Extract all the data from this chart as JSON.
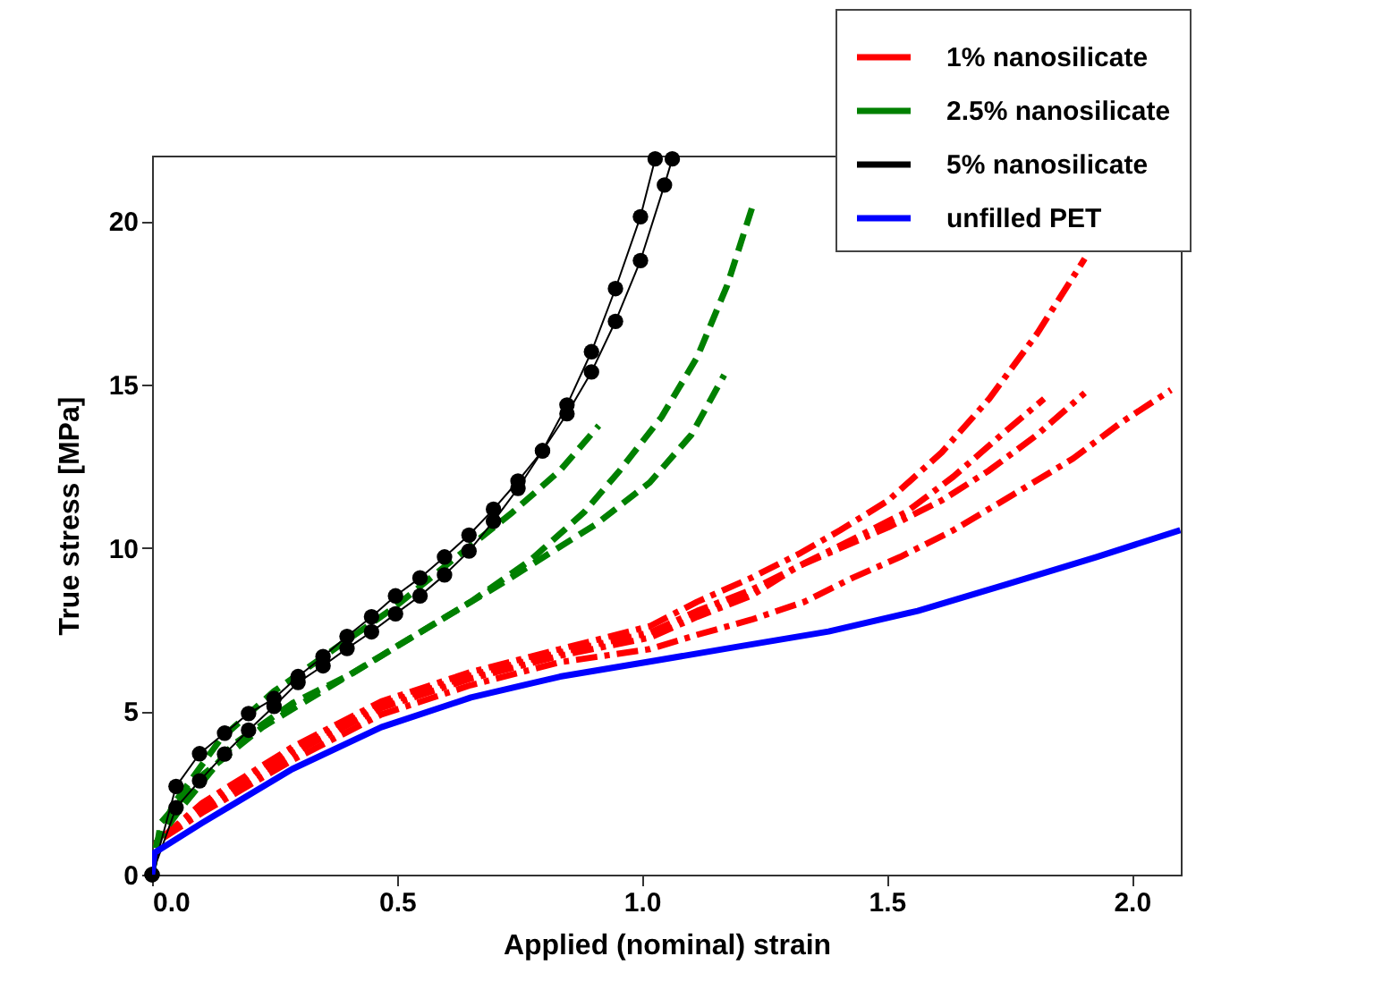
{
  "chart_data": {
    "type": "line",
    "xlabel": "Applied (nominal) strain",
    "ylabel": "True stress [MPa]",
    "xlim": [
      0,
      2.1
    ],
    "ylim": [
      0,
      22
    ],
    "xticks": [
      {
        "value": 0,
        "label": "0.0"
      },
      {
        "value": 0.5,
        "label": "0.5"
      },
      {
        "value": 1,
        "label": "1.0"
      },
      {
        "value": 1.5,
        "label": "1.5"
      },
      {
        "value": 2,
        "label": "2.0"
      }
    ],
    "yticks": [
      0,
      5,
      10,
      15,
      20
    ],
    "grid": false,
    "legend": "top right",
    "series": [
      {
        "name": "1% nanosilicate",
        "color": "#ff0000",
        "line_style": "dashdot",
        "x": [
          0,
          0.01,
          0.103,
          0.286,
          0.468,
          0.651,
          0.833,
          1.016,
          1.113,
          1.223,
          1.32,
          1.405,
          1.503,
          1.612,
          1.709,
          1.807,
          1.904
        ],
        "values": [
          0,
          1.0,
          2.2,
          3.9,
          5.3,
          6.2,
          6.9,
          7.6,
          8.35,
          9.08,
          9.81,
          10.54,
          11.45,
          12.92,
          14.56,
          16.56,
          18.85
        ]
      },
      {
        "color": "#ff0000",
        "line_style": "dashdot",
        "x": [
          0,
          0.01,
          0.103,
          0.286,
          0.468,
          0.651,
          0.833,
          1.016,
          1.113,
          1.223,
          1.332,
          1.43,
          1.539,
          1.636,
          1.734,
          1.821
        ],
        "values": [
          0,
          1.0,
          2.1,
          3.8,
          5.2,
          6.1,
          6.8,
          7.4,
          8.07,
          8.71,
          9.53,
          10.26,
          11.09,
          12.18,
          13.46,
          14.56
        ]
      },
      {
        "color": "#ff0000",
        "line_style": "dashdot",
        "x": [
          0,
          0.01,
          0.103,
          0.286,
          0.468,
          0.651,
          0.833,
          1.016,
          1.113,
          1.223,
          1.32,
          1.405,
          1.503,
          1.612,
          1.709,
          1.807,
          1.904
        ],
        "values": [
          0,
          1.0,
          2.0,
          3.7,
          5.1,
          6.0,
          6.7,
          7.25,
          7.89,
          8.53,
          9.44,
          9.99,
          10.63,
          11.45,
          12.37,
          13.46,
          14.74
        ]
      },
      {
        "color": "#ff0000",
        "line_style": "dashdot",
        "x": [
          0,
          0.01,
          0.103,
          0.286,
          0.468,
          0.651,
          0.833,
          1.016,
          1.113,
          1.223,
          1.332,
          1.43,
          1.527,
          1.636,
          1.758,
          1.88,
          1.977,
          2.08
        ],
        "values": [
          0,
          1.0,
          1.9,
          3.5,
          4.9,
          5.8,
          6.5,
          6.9,
          7.34,
          7.8,
          8.35,
          9.08,
          9.72,
          10.54,
          11.63,
          12.73,
          13.82,
          14.83
        ]
      },
      {
        "name": "2.5% nanosilicate",
        "color": "#008000",
        "line_style": "dashed",
        "x": [
          0,
          0.01,
          0.055,
          0.164,
          0.286,
          0.408,
          0.529,
          0.651,
          0.773,
          0.882,
          0.955,
          1.04,
          1.113,
          1.174,
          1.229
        ],
        "values": [
          0,
          1.0,
          1.96,
          3.96,
          5.24,
          6.15,
          7.25,
          8.35,
          9.63,
          11.09,
          12.37,
          14.0,
          15.84,
          18.03,
          20.6
        ]
      },
      {
        "color": "#008000",
        "line_style": "dashed",
        "x": [
          0,
          0.01,
          0.043,
          0.14,
          0.249,
          0.371,
          0.493,
          0.614,
          0.736,
          0.833,
          0.912
        ],
        "values": [
          0,
          1.0,
          2.14,
          4.15,
          5.61,
          6.89,
          8.16,
          9.63,
          11.09,
          12.37,
          13.74
        ]
      },
      {
        "color": "#008000",
        "line_style": "dashed",
        "x": [
          0,
          0.018,
          0.103,
          0.225,
          0.347,
          0.468,
          0.59,
          0.712,
          0.809,
          0.906,
          1.016,
          1.101,
          1.168
        ],
        "values": [
          0,
          1.59,
          3.05,
          4.51,
          5.61,
          6.7,
          7.8,
          8.89,
          9.81,
          10.72,
          12.0,
          13.46,
          15.29
        ]
      },
      {
        "name": "5% nanosilicate",
        "color": "#000000",
        "line_style": "solid",
        "marker": "circle",
        "x": [
          0,
          0.049,
          0.097,
          0.148,
          0.197,
          0.249,
          0.298,
          0.349,
          0.398,
          0.448,
          0.497,
          0.547,
          0.597,
          0.647,
          0.697,
          0.747,
          0.797,
          0.847,
          0.897,
          0.946,
          0.997,
          1.027
        ],
        "values": [
          0,
          2.7,
          3.7,
          4.33,
          4.93,
          5.39,
          6.06,
          6.67,
          7.29,
          7.89,
          8.53,
          9.08,
          9.72,
          10.39,
          11.18,
          12.04,
          12.97,
          14.37,
          16.0,
          17.93,
          20.13,
          21.9
        ]
      },
      {
        "color": "#000000",
        "line_style": "solid",
        "marker": "circle",
        "x": [
          0,
          0.049,
          0.097,
          0.148,
          0.197,
          0.249,
          0.298,
          0.349,
          0.398,
          0.448,
          0.497,
          0.547,
          0.597,
          0.647,
          0.697,
          0.747,
          0.797,
          0.847,
          0.897,
          0.946,
          0.997,
          1.046,
          1.062
        ],
        "values": [
          0,
          2.05,
          2.87,
          3.69,
          4.42,
          5.15,
          5.88,
          6.39,
          6.92,
          7.43,
          7.98,
          8.53,
          9.17,
          9.9,
          10.81,
          11.82,
          12.97,
          14.1,
          15.38,
          16.93,
          18.79,
          21.1,
          21.9
        ]
      },
      {
        "name": "unfilled PET",
        "color": "#0000ff",
        "line_style": "solid",
        "x": [
          0,
          0.005,
          0.103,
          0.286,
          0.468,
          0.651,
          0.833,
          1.016,
          1.198,
          1.381,
          1.563,
          1.746,
          1.928,
          2.099
        ],
        "values": [
          0,
          0.67,
          1.59,
          3.23,
          4.51,
          5.42,
          6.06,
          6.52,
          6.98,
          7.44,
          8.07,
          8.89,
          9.72,
          10.54
        ]
      }
    ]
  }
}
